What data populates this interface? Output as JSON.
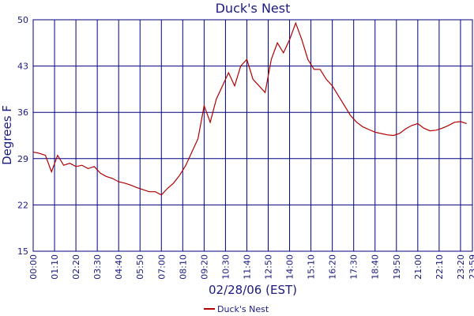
{
  "chart_data": {
    "type": "line",
    "title": "Duck's Nest",
    "xlabel": "02/28/06 (EST)",
    "ylabel": "Degrees F",
    "x": [
      0,
      20,
      40,
      60,
      80,
      100,
      120,
      140,
      160,
      180,
      200,
      220,
      240,
      260,
      280,
      300,
      320,
      340,
      360,
      380,
      400,
      420,
      440,
      460,
      480,
      500,
      520,
      540,
      560,
      580,
      600,
      620,
      640,
      660,
      680,
      700,
      720,
      740,
      760,
      780,
      800,
      820,
      840,
      860,
      880,
      900,
      920,
      940,
      960,
      980,
      1000,
      1020,
      1040,
      1060,
      1080,
      1100,
      1120,
      1140,
      1160,
      1180,
      1200,
      1220,
      1240,
      1260,
      1280,
      1300,
      1320,
      1340,
      1360,
      1380,
      1400,
      1420
    ],
    "series": [
      {
        "name": "Duck's Nest",
        "color": "#b00000",
        "values": [
          30,
          29.8,
          29.5,
          27,
          29.5,
          28,
          28.3,
          27.8,
          28,
          27.5,
          27.8,
          26.8,
          26.3,
          26,
          25.5,
          25.3,
          25,
          24.6,
          24.3,
          24,
          24,
          23.5,
          24.5,
          25.3,
          26.5,
          28,
          30,
          32,
          37,
          34.5,
          38,
          40,
          42,
          40,
          43,
          44,
          41,
          40,
          39,
          44,
          46.5,
          45,
          47,
          49.5,
          47,
          44,
          42.5,
          42.5,
          41,
          40,
          38.5,
          37,
          35.5,
          34.5,
          33.8,
          33.4,
          33,
          32.8,
          32.6,
          32.5,
          32.8,
          33.5,
          34,
          34.3,
          33.6,
          33.2,
          33.3,
          33.6,
          34,
          34.5,
          34.6,
          34.3
        ]
      }
    ],
    "xlim": [
      0,
      1439
    ],
    "xticks": [
      {
        "value": 0,
        "label": "00:00"
      },
      {
        "value": 70,
        "label": "01:10"
      },
      {
        "value": 140,
        "label": "02:20"
      },
      {
        "value": 210,
        "label": "03:30"
      },
      {
        "value": 280,
        "label": "04:40"
      },
      {
        "value": 350,
        "label": "05:50"
      },
      {
        "value": 420,
        "label": "07:00"
      },
      {
        "value": 490,
        "label": "08:10"
      },
      {
        "value": 560,
        "label": "09:20"
      },
      {
        "value": 630,
        "label": "10:30"
      },
      {
        "value": 700,
        "label": "11:40"
      },
      {
        "value": 770,
        "label": "12:50"
      },
      {
        "value": 840,
        "label": "14:00"
      },
      {
        "value": 910,
        "label": "15:10"
      },
      {
        "value": 980,
        "label": "16:20"
      },
      {
        "value": 1050,
        "label": "17:30"
      },
      {
        "value": 1120,
        "label": "18:40"
      },
      {
        "value": 1190,
        "label": "19:50"
      },
      {
        "value": 1260,
        "label": "21:00"
      },
      {
        "value": 1330,
        "label": "22:10"
      },
      {
        "value": 1400,
        "label": "23:20"
      },
      {
        "value": 1439,
        "label": "23:59"
      }
    ],
    "ylim": [
      15,
      50
    ],
    "yticks": [
      15,
      22,
      29,
      36,
      43,
      50
    ],
    "grid": true,
    "legend": "bottom"
  }
}
